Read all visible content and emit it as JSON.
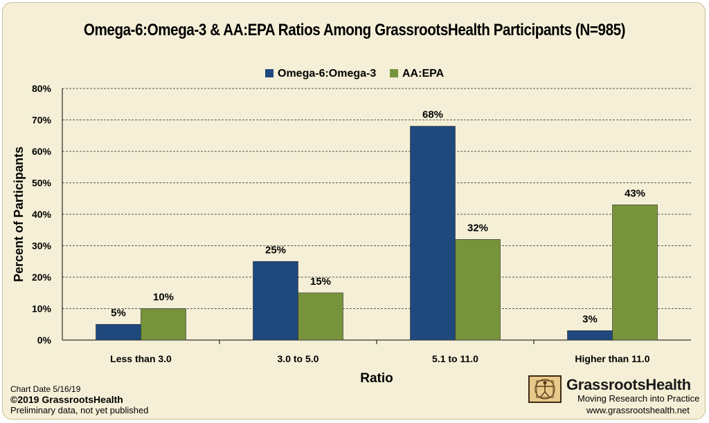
{
  "chart_data": {
    "type": "bar",
    "title": "Omega-6:Omega-3 & AA:EPA Ratios Among GrassrootsHealth Participants (N=985)",
    "xlabel": "Ratio",
    "ylabel": "Percent of Participants",
    "categories": [
      "Less than 3.0",
      "3.0 to 5.0",
      "5.1 to 11.0",
      "Higher than 11.0"
    ],
    "series": [
      {
        "name": "Omega-6:Omega-3",
        "color": "#1f497d",
        "values": [
          5,
          25,
          68,
          3
        ],
        "labels": [
          "5%",
          "25%",
          "68%",
          "3%"
        ]
      },
      {
        "name": "AA:EPA",
        "color": "#77933c",
        "values": [
          10,
          15,
          32,
          43
        ],
        "labels": [
          "10%",
          "15%",
          "32%",
          "43%"
        ]
      }
    ],
    "ylim": [
      0,
      80
    ],
    "yticks": [
      "0%",
      "10%",
      "20%",
      "30%",
      "40%",
      "50%",
      "60%",
      "70%",
      "80%"
    ],
    "legend": "top-center",
    "grid": true
  },
  "footer": {
    "chart_date": "Chart Date 5/16/19",
    "copyright": "©2019 GrassrootsHealth",
    "note": "Preliminary data, not yet published"
  },
  "branding": {
    "name": "GrassrootsHealth",
    "tagline": "Moving Research into Practice",
    "website": "www.grassrootshealth.net",
    "logo_icon": "vitruvian-man-icon"
  }
}
